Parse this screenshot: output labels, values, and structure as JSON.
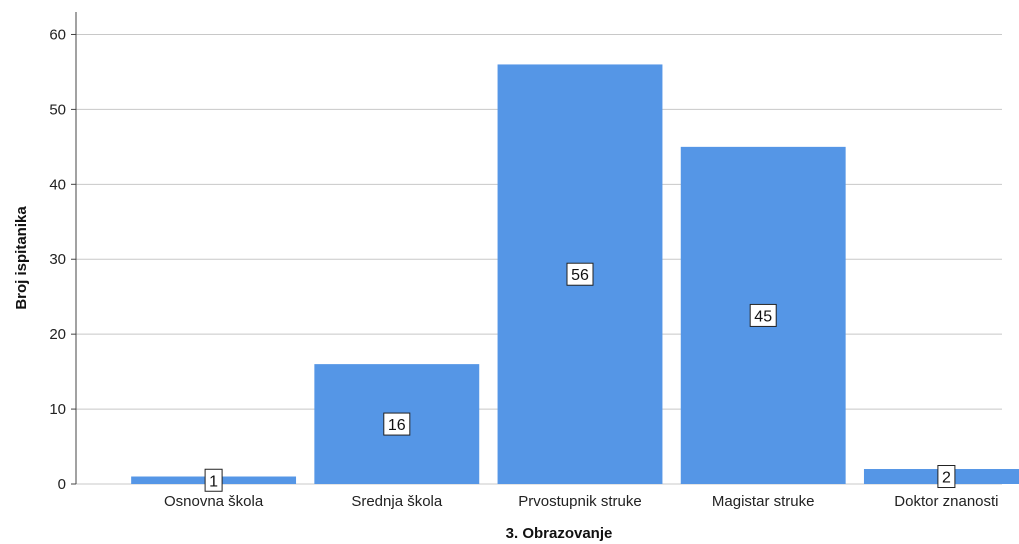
{
  "chart_data": {
    "type": "bar",
    "categories": [
      "Osnovna škola",
      "Srednja škola",
      "Prvostupnik struke",
      "Magistar struke",
      "Doktor znanosti"
    ],
    "values": [
      1,
      16,
      56,
      45,
      2
    ],
    "data_labels": [
      "1",
      "16",
      "56",
      "45",
      "2"
    ],
    "title": "",
    "xlabel": "3. Obrazovanje",
    "ylabel": "Broj ispitanika",
    "ylim": [
      0,
      63
    ],
    "yticks": [
      0,
      10,
      20,
      30,
      40,
      50,
      60
    ],
    "ytick_labels": [
      "0",
      "10",
      "20",
      "30",
      "40",
      "50",
      "60"
    ],
    "grid": true,
    "colors": {
      "bar": "#5596e6",
      "grid": "#c8c8c8",
      "axis": "#444444"
    }
  }
}
